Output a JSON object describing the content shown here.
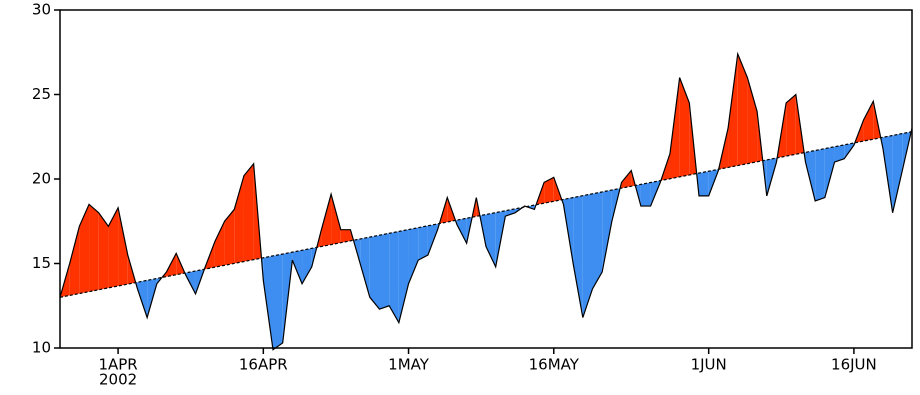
{
  "chart_data": {
    "type": "anomaly-area",
    "x": [
      "2002-03-26",
      "2002-03-27",
      "2002-03-28",
      "2002-03-29",
      "2002-03-30",
      "2002-03-31",
      "2002-04-01",
      "2002-04-02",
      "2002-04-03",
      "2002-04-04",
      "2002-04-05",
      "2002-04-06",
      "2002-04-07",
      "2002-04-08",
      "2002-04-09",
      "2002-04-10",
      "2002-04-11",
      "2002-04-12",
      "2002-04-13",
      "2002-04-14",
      "2002-04-15",
      "2002-04-16",
      "2002-04-17",
      "2002-04-18",
      "2002-04-19",
      "2002-04-20",
      "2002-04-21",
      "2002-04-22",
      "2002-04-23",
      "2002-04-24",
      "2002-04-25",
      "2002-04-26",
      "2002-04-27",
      "2002-04-28",
      "2002-04-29",
      "2002-04-30",
      "2002-05-01",
      "2002-05-02",
      "2002-05-03",
      "2002-05-04",
      "2002-05-05",
      "2002-05-06",
      "2002-05-07",
      "2002-05-08",
      "2002-05-09",
      "2002-05-10",
      "2002-05-11",
      "2002-05-12",
      "2002-05-13",
      "2002-05-14",
      "2002-05-15",
      "2002-05-16",
      "2002-05-17",
      "2002-05-18",
      "2002-05-19",
      "2002-05-20",
      "2002-05-21",
      "2002-05-22",
      "2002-05-23",
      "2002-05-24",
      "2002-05-25",
      "2002-05-26",
      "2002-05-27",
      "2002-05-28",
      "2002-05-29",
      "2002-05-30",
      "2002-05-31",
      "2002-06-01",
      "2002-06-02",
      "2002-06-03",
      "2002-06-04",
      "2002-06-05",
      "2002-06-06",
      "2002-06-07",
      "2002-06-08",
      "2002-06-09",
      "2002-06-10",
      "2002-06-11",
      "2002-06-12",
      "2002-06-13",
      "2002-06-14",
      "2002-06-15",
      "2002-06-16",
      "2002-06-17",
      "2002-06-18",
      "2002-06-19",
      "2002-06-20",
      "2002-06-21",
      "2002-06-22"
    ],
    "series": [
      {
        "above_color": "#ff3300",
        "below_color": "#3d8ef0",
        "values": [
          13.0,
          15.0,
          17.2,
          18.5,
          18.0,
          17.2,
          18.3,
          15.5,
          13.5,
          11.8,
          13.8,
          14.5,
          15.6,
          14.3,
          13.2,
          14.8,
          16.3,
          17.5,
          18.2,
          20.2,
          20.9,
          14.0,
          9.9,
          10.3,
          15.2,
          13.8,
          14.8,
          17.0,
          19.1,
          17.0,
          17.0,
          15.0,
          13.0,
          12.3,
          12.5,
          11.5,
          13.8,
          15.2,
          15.5,
          17.0,
          18.9,
          17.3,
          16.2,
          18.9,
          16.0,
          14.8,
          17.8,
          18.0,
          18.4,
          18.2,
          19.8,
          20.1,
          18.5,
          15.0,
          11.8,
          13.5,
          14.5,
          17.5,
          19.8,
          20.5,
          18.4,
          18.4,
          19.8,
          21.5,
          26.0,
          24.5,
          19.0,
          19.0,
          20.5,
          23.0,
          27.4,
          26.0,
          24.0,
          19.0,
          21.0,
          24.5,
          25.0,
          21.0,
          18.7,
          18.9,
          21.0,
          21.2,
          22.0,
          23.5,
          24.6,
          21.8,
          18.0,
          20.5,
          23.0
        ]
      }
    ],
    "baseline": {
      "x": [
        "2002-03-26",
        "2002-06-22"
      ],
      "values": [
        13.0,
        22.8
      ]
    },
    "xlim": [
      "2002-03-26",
      "2002-06-22"
    ],
    "xticks": [
      {
        "value": "2002-04-01",
        "label": "1APR",
        "sublabel": "2002"
      },
      {
        "value": "2002-04-16",
        "label": "16APR"
      },
      {
        "value": "2002-05-01",
        "label": "1MAY"
      },
      {
        "value": "2002-05-16",
        "label": "16MAY"
      },
      {
        "value": "2002-06-01",
        "label": "1JUN"
      },
      {
        "value": "2002-06-16",
        "label": "16JUN"
      }
    ],
    "ylim": [
      10,
      30
    ],
    "yticks": [
      10,
      15,
      20,
      25,
      30
    ]
  }
}
